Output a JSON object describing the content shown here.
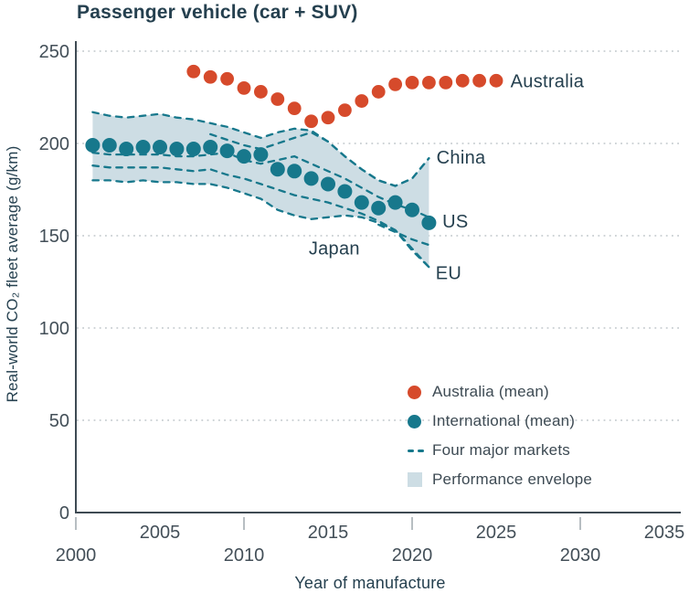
{
  "colors": {
    "australia": "#d64a2b",
    "international": "#17788c",
    "envelope_fill": "#cddde4",
    "text_dark": "#25404f",
    "tick_text": "#434f58",
    "axis": "#3e4a53",
    "tick_mark": "#9fa8ad",
    "grid": "#bfc6ca"
  },
  "chart_data": {
    "type": "scatter",
    "title": "Passenger vehicle (car + SUV)",
    "xlabel": "Year of manufacture",
    "ylabel": "Real-world CO₂ fleet average (g/km)",
    "xlim": [
      2000,
      2035
    ],
    "ylim": [
      0,
      250
    ],
    "y_ticks": [
      0,
      50,
      100,
      150,
      200,
      250
    ],
    "x_ticks_upper_row": [
      2005,
      2015,
      2025,
      2035
    ],
    "x_ticks_lower_row": [
      2000,
      2010,
      2020,
      2030
    ],
    "grid": "horizontal-dotted",
    "legend_position": "bottom-right-inside",
    "series": [
      {
        "name": "Australia (mean)",
        "style": "points",
        "color_key": "australia",
        "points": [
          [
            2007,
            239
          ],
          [
            2008,
            236
          ],
          [
            2009,
            235
          ],
          [
            2010,
            230
          ],
          [
            2011,
            228
          ],
          [
            2012,
            224
          ],
          [
            2013,
            219
          ],
          [
            2014,
            212
          ],
          [
            2015,
            214
          ],
          [
            2016,
            218
          ],
          [
            2017,
            223
          ],
          [
            2018,
            228
          ],
          [
            2019,
            232
          ],
          [
            2020,
            233
          ],
          [
            2021,
            233
          ],
          [
            2022,
            233
          ],
          [
            2023,
            234
          ],
          [
            2024,
            234
          ],
          [
            2025,
            234
          ]
        ]
      },
      {
        "name": "International (mean)",
        "style": "points",
        "color_key": "international",
        "points": [
          [
            2001,
            199
          ],
          [
            2002,
            199
          ],
          [
            2003,
            197
          ],
          [
            2004,
            198
          ],
          [
            2005,
            198
          ],
          [
            2006,
            197
          ],
          [
            2007,
            197
          ],
          [
            2008,
            198
          ],
          [
            2009,
            196
          ],
          [
            2010,
            193
          ],
          [
            2011,
            194
          ],
          [
            2012,
            186
          ],
          [
            2013,
            185
          ],
          [
            2014,
            181
          ],
          [
            2015,
            178
          ],
          [
            2016,
            174
          ],
          [
            2017,
            168
          ],
          [
            2018,
            165
          ],
          [
            2019,
            168
          ],
          [
            2020,
            164
          ],
          [
            2021,
            157
          ]
        ]
      }
    ],
    "envelope": {
      "name": "Performance envelope",
      "top": [
        [
          2001,
          217
        ],
        [
          2002,
          215
        ],
        [
          2003,
          214
        ],
        [
          2004,
          215
        ],
        [
          2005,
          216
        ],
        [
          2006,
          214
        ],
        [
          2007,
          213
        ],
        [
          2008,
          211
        ],
        [
          2009,
          209
        ],
        [
          2010,
          206
        ],
        [
          2011,
          203
        ],
        [
          2012,
          206
        ],
        [
          2013,
          208
        ],
        [
          2014,
          207
        ],
        [
          2015,
          201
        ],
        [
          2016,
          193
        ],
        [
          2017,
          186
        ],
        [
          2018,
          180
        ],
        [
          2019,
          177
        ],
        [
          2020,
          181
        ],
        [
          2021,
          192
        ]
      ],
      "bottom": [
        [
          2001,
          180
        ],
        [
          2002,
          180
        ],
        [
          2003,
          179
        ],
        [
          2004,
          180
        ],
        [
          2005,
          179
        ],
        [
          2006,
          179
        ],
        [
          2007,
          178
        ],
        [
          2008,
          178
        ],
        [
          2009,
          176
        ],
        [
          2010,
          173
        ],
        [
          2011,
          170
        ],
        [
          2012,
          164
        ],
        [
          2013,
          161
        ],
        [
          2014,
          159
        ],
        [
          2015,
          160
        ],
        [
          2016,
          161
        ],
        [
          2017,
          160
        ],
        [
          2018,
          157
        ],
        [
          2019,
          153
        ],
        [
          2020,
          143
        ],
        [
          2021,
          133
        ]
      ]
    },
    "market_lines": [
      {
        "name": "China",
        "points": [
          [
            2008,
            205
          ],
          [
            2009,
            202
          ],
          [
            2010,
            199
          ],
          [
            2011,
            197
          ],
          [
            2012,
            200
          ],
          [
            2013,
            203
          ],
          [
            2014,
            206
          ],
          [
            2015,
            201
          ],
          [
            2016,
            193
          ],
          [
            2017,
            186
          ],
          [
            2018,
            180
          ],
          [
            2019,
            177
          ],
          [
            2020,
            181
          ],
          [
            2021,
            192
          ]
        ]
      },
      {
        "name": "US",
        "points": [
          [
            2001,
            195
          ],
          [
            2002,
            194
          ],
          [
            2003,
            194
          ],
          [
            2004,
            194
          ],
          [
            2005,
            194
          ],
          [
            2006,
            193
          ],
          [
            2007,
            193
          ],
          [
            2008,
            194
          ],
          [
            2009,
            195
          ],
          [
            2010,
            191
          ],
          [
            2011,
            189
          ],
          [
            2012,
            191
          ],
          [
            2013,
            193
          ],
          [
            2014,
            189
          ],
          [
            2015,
            185
          ],
          [
            2016,
            181
          ],
          [
            2017,
            176
          ],
          [
            2018,
            171
          ],
          [
            2019,
            167
          ],
          [
            2020,
            164
          ],
          [
            2021,
            160
          ]
        ]
      },
      {
        "name": "EU",
        "points": [
          [
            2001,
            188
          ],
          [
            2002,
            187
          ],
          [
            2003,
            187
          ],
          [
            2004,
            187
          ],
          [
            2005,
            187
          ],
          [
            2006,
            186
          ],
          [
            2007,
            185
          ],
          [
            2008,
            186
          ],
          [
            2009,
            183
          ],
          [
            2010,
            181
          ],
          [
            2011,
            178
          ],
          [
            2012,
            175
          ],
          [
            2013,
            172
          ],
          [
            2014,
            170
          ],
          [
            2015,
            168
          ],
          [
            2016,
            165
          ],
          [
            2017,
            162
          ],
          [
            2018,
            158
          ],
          [
            2019,
            153
          ],
          [
            2020,
            142
          ],
          [
            2021,
            133
          ]
        ]
      },
      {
        "name": "Japan",
        "points": [
          [
            2018,
            156
          ],
          [
            2019,
            152
          ],
          [
            2020,
            148
          ],
          [
            2021,
            145
          ]
        ]
      }
    ],
    "annotations": [
      {
        "text": "Australia",
        "x": 2025.85,
        "y": 234
      },
      {
        "text": "China",
        "x": 2021.45,
        "y": 192.5
      },
      {
        "text": "US",
        "x": 2021.8,
        "y": 158
      },
      {
        "text": "EU",
        "x": 2021.4,
        "y": 130
      },
      {
        "text": "Japan",
        "x": 2013.85,
        "y": 143.3
      }
    ],
    "legend": [
      {
        "label": "Australia (mean)",
        "marker": "dot",
        "color_key": "australia"
      },
      {
        "label": "International (mean)",
        "marker": "dot",
        "color_key": "international"
      },
      {
        "label": "Four major markets",
        "marker": "dashes",
        "color_key": "international"
      },
      {
        "label": "Performance envelope",
        "marker": "square",
        "color_key": "envelope_fill"
      }
    ]
  }
}
